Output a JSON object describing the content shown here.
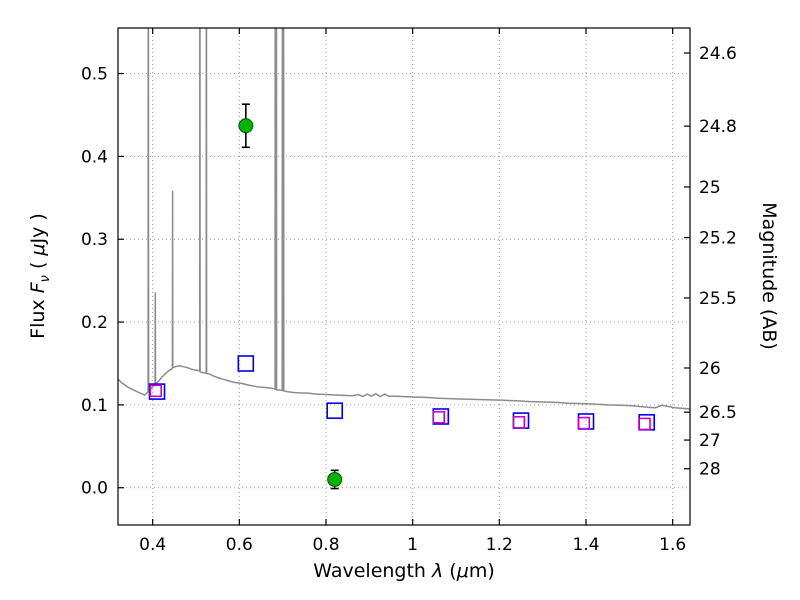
{
  "labels": {
    "ylabel_left": {
      "pre": "Flux ",
      "f": "F",
      "nu": "ν",
      "mid": " ( ",
      "mu": "μ",
      "post": "Jy )"
    },
    "xlabel": {
      "pre": "Wavelength ",
      "lambda": "λ",
      "mid": " (",
      "mu": "μ",
      "post": "m)"
    },
    "ylabel_right": "Magnitude (AB)"
  },
  "chart_data": {
    "type": "line+scatter",
    "title": "",
    "xlabel": "Wavelength λ (μm)",
    "ylabel": "Flux Fν ( μJy )",
    "ylabel_right": "Magnitude (AB)",
    "xlim": [
      0.32,
      1.64
    ],
    "ylim": [
      -0.045,
      0.555
    ],
    "grid": true,
    "legend": "none",
    "x_ticks": [
      0.4,
      0.6,
      0.8,
      1,
      1.2,
      1.4,
      1.6
    ],
    "x_tick_labels": [
      "0.4",
      "0.6",
      "0.8",
      "1",
      "1.2",
      "1.4",
      "1.6"
    ],
    "y_ticks_left": [
      0.0,
      0.1,
      0.2,
      0.3,
      0.4,
      0.5
    ],
    "y_tick_labels_left": [
      "0.0",
      "0.1",
      "0.2",
      "0.3",
      "0.4",
      "0.5"
    ],
    "y_ticks_right_mags": [
      24.6,
      24.8,
      25,
      25.2,
      25.5,
      26,
      26.5,
      27,
      28
    ],
    "y_tick_labels_right": [
      "24.6",
      "24.8",
      "25",
      "25.2",
      "25.5",
      "26",
      "26.5",
      "27",
      "28"
    ],
    "mag_zeropoint": 23.9,
    "series": [
      {
        "name": "spectrum",
        "kind": "line",
        "color": "#8c8c8c",
        "points": [
          [
            0.32,
            0.131
          ],
          [
            0.328,
            0.127
          ],
          [
            0.336,
            0.124
          ],
          [
            0.344,
            0.121
          ],
          [
            0.352,
            0.119
          ],
          [
            0.36,
            0.117
          ],
          [
            0.368,
            0.115
          ],
          [
            0.376,
            0.113
          ],
          [
            0.382,
            0.112
          ],
          [
            0.386,
            0.114
          ],
          [
            0.3895,
            0.116
          ],
          [
            0.39,
            1.0
          ],
          [
            0.3905,
            0.118
          ],
          [
            0.394,
            0.119
          ],
          [
            0.398,
            0.121
          ],
          [
            0.402,
            0.123
          ],
          [
            0.4055,
            0.124
          ],
          [
            0.406,
            0.235
          ],
          [
            0.4065,
            0.125
          ],
          [
            0.41,
            0.127
          ],
          [
            0.416,
            0.13
          ],
          [
            0.422,
            0.134
          ],
          [
            0.428,
            0.137
          ],
          [
            0.434,
            0.14
          ],
          [
            0.44,
            0.142
          ],
          [
            0.4455,
            0.144
          ],
          [
            0.446,
            0.358
          ],
          [
            0.4465,
            0.145
          ],
          [
            0.452,
            0.146
          ],
          [
            0.458,
            0.147
          ],
          [
            0.464,
            0.147
          ],
          [
            0.472,
            0.146
          ],
          [
            0.48,
            0.145
          ],
          [
            0.49,
            0.143
          ],
          [
            0.5,
            0.142
          ],
          [
            0.5085,
            0.141
          ],
          [
            0.509,
            1.0
          ],
          [
            0.5095,
            0.14
          ],
          [
            0.516,
            0.139
          ],
          [
            0.5235,
            0.138
          ],
          [
            0.524,
            1.0
          ],
          [
            0.5245,
            0.138
          ],
          [
            0.532,
            0.137
          ],
          [
            0.54,
            0.135
          ],
          [
            0.55,
            0.133
          ],
          [
            0.562,
            0.131
          ],
          [
            0.575,
            0.129
          ],
          [
            0.59,
            0.127
          ],
          [
            0.605,
            0.126
          ],
          [
            0.62,
            0.124
          ],
          [
            0.64,
            0.122
          ],
          [
            0.66,
            0.121
          ],
          [
            0.675,
            0.12
          ],
          [
            0.6825,
            0.119
          ],
          [
            0.683,
            1.0
          ],
          [
            0.6835,
            0.119
          ],
          [
            0.685,
            0.119
          ],
          [
            0.6855,
            1.0
          ],
          [
            0.686,
            0.118
          ],
          [
            0.693,
            0.118
          ],
          [
            0.699,
            0.1175
          ],
          [
            0.6995,
            1.0
          ],
          [
            0.7,
            0.117
          ],
          [
            0.7015,
            0.117
          ],
          [
            0.702,
            0.95
          ],
          [
            0.7025,
            0.117
          ],
          [
            0.71,
            0.116
          ],
          [
            0.725,
            0.115
          ],
          [
            0.74,
            0.1145
          ],
          [
            0.76,
            0.114
          ],
          [
            0.78,
            0.113
          ],
          [
            0.8,
            0.1125
          ],
          [
            0.82,
            0.112
          ],
          [
            0.84,
            0.1115
          ],
          [
            0.86,
            0.111
          ],
          [
            0.875,
            0.1125
          ],
          [
            0.885,
            0.11
          ],
          [
            0.895,
            0.113
          ],
          [
            0.905,
            0.1105
          ],
          [
            0.915,
            0.1135
          ],
          [
            0.925,
            0.11
          ],
          [
            0.935,
            0.113
          ],
          [
            0.945,
            0.1105
          ],
          [
            0.96,
            0.1105
          ],
          [
            0.98,
            0.11
          ],
          [
            1.0,
            0.1095
          ],
          [
            1.03,
            0.109
          ],
          [
            1.06,
            0.108
          ],
          [
            1.09,
            0.1075
          ],
          [
            1.12,
            0.107
          ],
          [
            1.15,
            0.1065
          ],
          [
            1.18,
            0.106
          ],
          [
            1.21,
            0.1055
          ],
          [
            1.24,
            0.105
          ],
          [
            1.27,
            0.104
          ],
          [
            1.3,
            0.1035
          ],
          [
            1.33,
            0.103
          ],
          [
            1.36,
            0.102
          ],
          [
            1.39,
            0.1015
          ],
          [
            1.42,
            0.101
          ],
          [
            1.45,
            0.1
          ],
          [
            1.48,
            0.0995
          ],
          [
            1.505,
            0.099
          ],
          [
            1.525,
            0.098
          ],
          [
            1.545,
            0.097
          ],
          [
            1.56,
            0.0965
          ],
          [
            1.575,
            0.0995
          ],
          [
            1.59,
            0.098
          ],
          [
            1.605,
            0.0965
          ],
          [
            1.62,
            0.096
          ],
          [
            1.64,
            0.095
          ]
        ]
      },
      {
        "name": "observed-photometry",
        "kind": "scatter",
        "marker": "circle-filled",
        "color": "#00b300",
        "edge_color": "#005500",
        "errorbar_color": "#000000",
        "points": [
          {
            "x": 0.615,
            "y": 0.437,
            "yerr": 0.026
          },
          {
            "x": 0.82,
            "y": 0.01,
            "yerr": 0.011
          }
        ]
      },
      {
        "name": "model-photometry-blue",
        "kind": "scatter",
        "marker": "square-open",
        "color": "#0000ee",
        "points": [
          [
            0.41,
            0.116
          ],
          [
            0.615,
            0.15
          ],
          [
            0.82,
            0.093
          ],
          [
            1.065,
            0.086
          ],
          [
            1.25,
            0.081
          ],
          [
            1.4,
            0.08
          ],
          [
            1.54,
            0.079
          ]
        ]
      },
      {
        "name": "model-photometry-magenta",
        "kind": "scatter",
        "marker": "square-open",
        "color": "#cc00cc",
        "points": [
          [
            0.407,
            0.117
          ],
          [
            1.06,
            0.085
          ],
          [
            1.245,
            0.079
          ],
          [
            1.395,
            0.078
          ],
          [
            1.535,
            0.077
          ]
        ]
      }
    ]
  }
}
